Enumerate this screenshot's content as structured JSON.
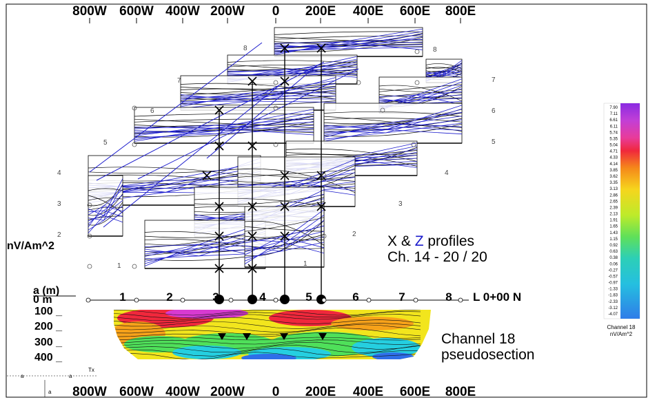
{
  "axis": {
    "top_ticks": [
      "800W",
      "600W",
      "400W",
      "200W",
      "0",
      "200E",
      "400E",
      "600E",
      "800E"
    ],
    "bottom_ticks": [
      "800W",
      "600W",
      "400W",
      "200W",
      "0",
      "200E",
      "400E",
      "600E",
      "800E"
    ]
  },
  "profile_line_numbers": {
    "left": [
      "1",
      "2",
      "3",
      "4",
      "5",
      "6",
      "7",
      "8"
    ],
    "right": [
      "1",
      "2",
      "3",
      "4",
      "5",
      "6",
      "7",
      "8"
    ]
  },
  "y_axis_unit": "nV/Am^2",
  "profiles_note": {
    "line1_prefix": "X & ",
    "line1_z": "Z",
    "line1_suffix": " profiles",
    "line2": "Ch. 14 - 20 / 20"
  },
  "section": {
    "depth_header": "a (m)",
    "depth_zero": "0 m",
    "depths": [
      "100 _",
      "200 _",
      "300 _",
      "400 _"
    ],
    "stations": [
      "1",
      "2",
      "3",
      "4",
      "5",
      "6",
      "7",
      "8"
    ],
    "line_label": "L 0+00 N",
    "title_line1": "Channel 18",
    "title_line2": "pseudosection",
    "tx_label": "Tx",
    "small_marks": [
      "a",
      "a",
      "a"
    ]
  },
  "colorbar": {
    "ticks": [
      "7.90",
      "7.11",
      "6.61",
      "6.11",
      "5.74",
      "5.35",
      "5.04",
      "4.71",
      "4.33",
      "4.14",
      "3.85",
      "3.62",
      "3.35",
      "3.13",
      "2.86",
      "2.65",
      "2.39",
      "2.13",
      "1.91",
      "1.65",
      "1.43",
      "1.15",
      "0.92",
      "0.63",
      "0.38",
      "0.06",
      "-0.27",
      "-0.57",
      "-0.97",
      "-1.33",
      "-1.83",
      "-2.33",
      "-3.12",
      "-4.07"
    ],
    "label1": "Channel 18",
    "label2": "nV/Am^2",
    "colors": [
      "#8a2be2",
      "#b23bd8",
      "#d63fc8",
      "#e53da0",
      "#ee2e6a",
      "#f0283c",
      "#f25a1e",
      "#f5881a",
      "#f7b21a",
      "#f6d51d",
      "#e9ec1f",
      "#bdeb2a",
      "#8fe73c",
      "#5fe05a",
      "#3fd98a",
      "#2ccfb7",
      "#25bfe0",
      "#2aa0ec",
      "#2f7de8"
    ],
    "section_colors": {
      "magenta": "#d83ad0",
      "red": "#f0283c",
      "orange": "#f7a21a",
      "yellow": "#f2e51d",
      "green": "#4fe05a",
      "cyan": "#25cfe0",
      "blue": "#2f6ee8"
    },
    "profile_black": "#000000",
    "profile_blue": "#1a1acc"
  }
}
